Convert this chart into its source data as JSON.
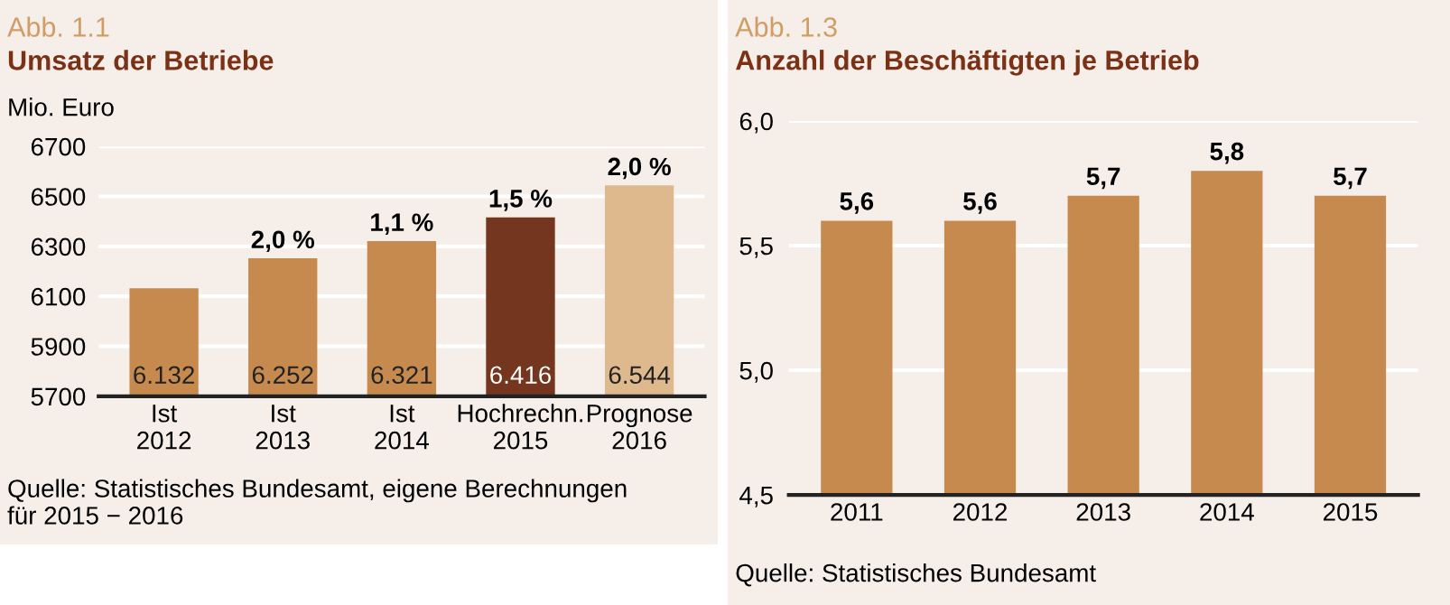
{
  "chart_data": [
    {
      "type": "bar",
      "subtitle": "Abb. 1.1",
      "title": "Umsatz der Betriebe",
      "ylabel": "Mio. Euro",
      "categories": [
        "Ist\n2012",
        "Ist\n2013",
        "Ist\n2014",
        "Hochrechn.\n2015",
        "Prognose\n2016"
      ],
      "values": [
        6132,
        6252,
        6321,
        6416,
        6544
      ],
      "colors": [
        "#c68a4e",
        "#c68a4e",
        "#c68a4e",
        "#74361e",
        "#dfb98e"
      ],
      "value_labels": [
        "6.132",
        "6.252",
        "6.321",
        "6.416",
        "6.544"
      ],
      "ylim": [
        5700,
        6700
      ],
      "yticks": [
        5700,
        5900,
        6100,
        6300,
        6500,
        6700
      ],
      "grid": "y",
      "annotations": [
        {
          "text": "2,0 %",
          "x": "Ist\n2013",
          "y": 6252
        },
        {
          "text": "1,1 %",
          "x": "Ist\n2014",
          "y": 6321
        },
        {
          "text": "1,5 %",
          "x": "Hochrechn.\n2015",
          "y": 6416
        },
        {
          "text": "2,0 %",
          "x": "Prognose\n2016",
          "y": 6544
        },
        "Quelle: Statistisches Bundesamt, eigene Berechnungen\nfür 2015 − 2016"
      ]
    },
    {
      "type": "bar",
      "subtitle": "Abb. 1.3",
      "title": "Anzahl der Beschäftigten je Betrieb",
      "categories": [
        "2011",
        "2012",
        "2013",
        "2014",
        "2015"
      ],
      "values": [
        5.6,
        5.6,
        5.7,
        5.8,
        5.7
      ],
      "colors": [
        "#c68a4e",
        "#c68a4e",
        "#c68a4e",
        "#c68a4e",
        "#c68a4e"
      ],
      "value_labels": [
        "5,6",
        "5,6",
        "5,7",
        "5,8",
        "5,7"
      ],
      "ylim": [
        4.5,
        6.0
      ],
      "yticks": [
        {
          "value": 4.5,
          "label": "4,5"
        },
        {
          "value": 5.0,
          "label": "5,0"
        },
        {
          "value": 5.5,
          "label": "5,5"
        },
        {
          "value": 6.0,
          "label": "6,0"
        }
      ],
      "grid": "y",
      "annotations": [
        "Quelle: Statistisches Bundesamt"
      ]
    }
  ]
}
